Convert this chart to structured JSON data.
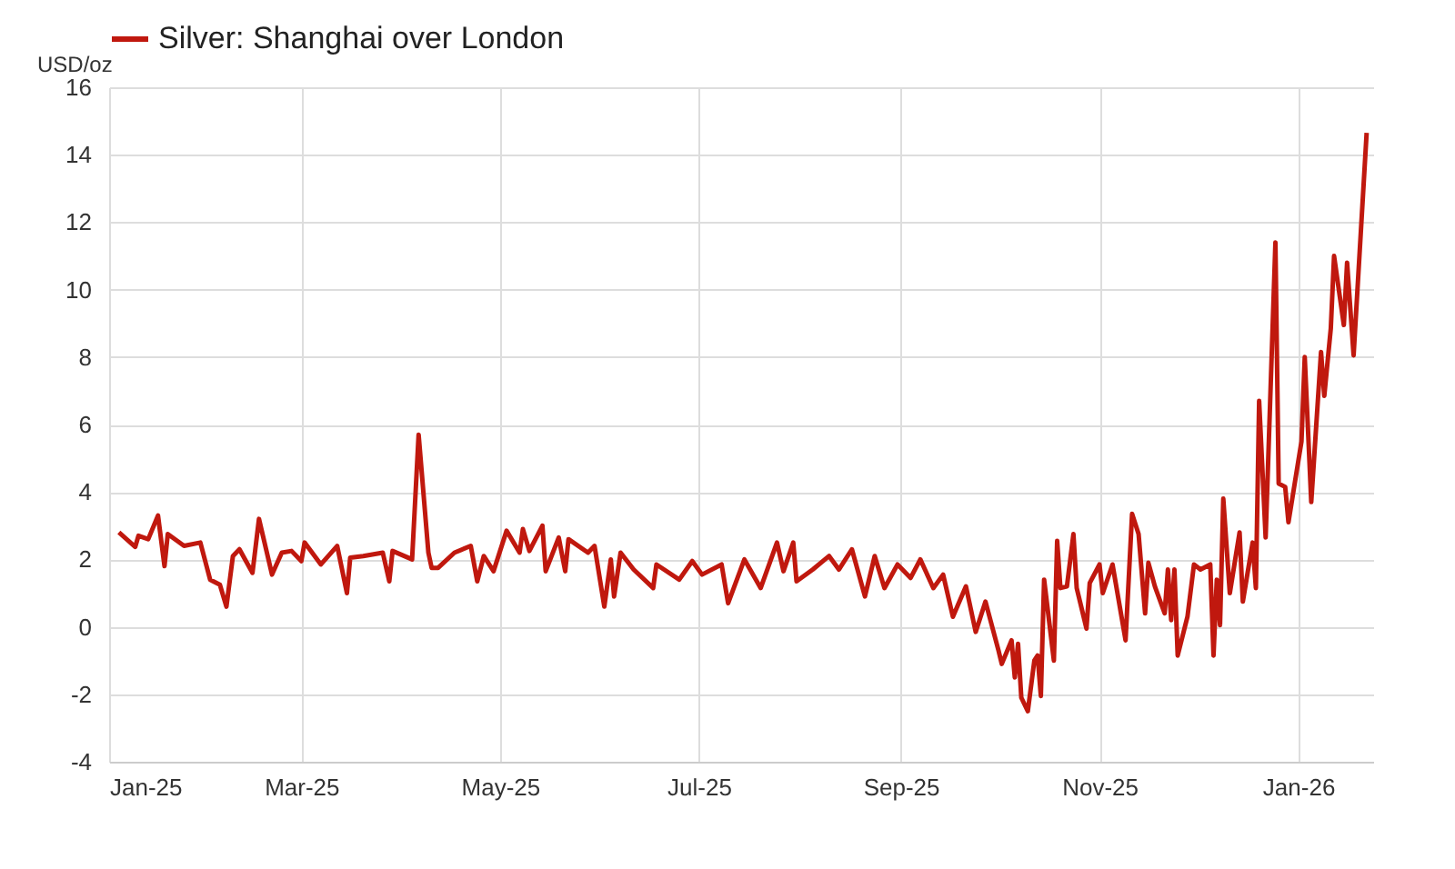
{
  "chart_data": {
    "type": "line",
    "ylabel": "USD/oz",
    "x": [
      "2025-01-04",
      "2025-01-09",
      "2025-01-10",
      "2025-01-13",
      "2025-01-16",
      "2025-01-18",
      "2025-01-19",
      "2025-01-24",
      "2025-01-29",
      "2025-02-01",
      "2025-02-04",
      "2025-02-06",
      "2025-02-08",
      "2025-02-10",
      "2025-02-14",
      "2025-02-16",
      "2025-02-20",
      "2025-02-23",
      "2025-02-26",
      "2025-03-01",
      "2025-03-02",
      "2025-03-07",
      "2025-03-12",
      "2025-03-15",
      "2025-03-16",
      "2025-03-20",
      "2025-03-26",
      "2025-03-28",
      "2025-03-29",
      "2025-04-04",
      "2025-04-06",
      "2025-04-09",
      "2025-04-10",
      "2025-04-12",
      "2025-04-17",
      "2025-04-22",
      "2025-04-24",
      "2025-04-26",
      "2025-04-29",
      "2025-05-03",
      "2025-05-07",
      "2025-05-08",
      "2025-05-10",
      "2025-05-14",
      "2025-05-15",
      "2025-05-19",
      "2025-05-21",
      "2025-05-22",
      "2025-05-28",
      "2025-05-30",
      "2025-06-02",
      "2025-06-04",
      "2025-06-05",
      "2025-06-07",
      "2025-06-11",
      "2025-06-17",
      "2025-06-18",
      "2025-06-25",
      "2025-06-29",
      "2025-07-02",
      "2025-07-08",
      "2025-07-10",
      "2025-07-15",
      "2025-07-20",
      "2025-07-25",
      "2025-07-27",
      "2025-07-30",
      "2025-07-31",
      "2025-08-05",
      "2025-08-10",
      "2025-08-13",
      "2025-08-17",
      "2025-08-21",
      "2025-08-24",
      "2025-08-27",
      "2025-08-31",
      "2025-09-04",
      "2025-09-07",
      "2025-09-11",
      "2025-09-14",
      "2025-09-17",
      "2025-09-21",
      "2025-09-24",
      "2025-09-27",
      "2025-10-01",
      "2025-10-02",
      "2025-10-05",
      "2025-10-06",
      "2025-10-07",
      "2025-10-08",
      "2025-10-10",
      "2025-10-12",
      "2025-10-13",
      "2025-10-14",
      "2025-10-15",
      "2025-10-18",
      "2025-10-19",
      "2025-10-20",
      "2025-10-22",
      "2025-10-24",
      "2025-10-25",
      "2025-10-28",
      "2025-10-29",
      "2025-11-01",
      "2025-11-02",
      "2025-11-05",
      "2025-11-09",
      "2025-11-11",
      "2025-11-13",
      "2025-11-15",
      "2025-11-16",
      "2025-11-18",
      "2025-11-21",
      "2025-11-22",
      "2025-11-23",
      "2025-11-24",
      "2025-11-25",
      "2025-11-28",
      "2025-11-30",
      "2025-12-02",
      "2025-12-05",
      "2025-12-06",
      "2025-12-07",
      "2025-12-08",
      "2025-12-09",
      "2025-12-11",
      "2025-12-14",
      "2025-12-15",
      "2025-12-18",
      "2025-12-19",
      "2025-12-20",
      "2025-12-22",
      "2025-12-25",
      "2025-12-26",
      "2025-12-28",
      "2025-12-29",
      "2026-01-02",
      "2026-01-03",
      "2026-01-05",
      "2026-01-08",
      "2026-01-09",
      "2026-01-11",
      "2026-01-12",
      "2026-01-15",
      "2026-01-16",
      "2026-01-18",
      "2026-01-22"
    ],
    "series": [
      {
        "name": "Silver: Shanghai over London",
        "color": "#c0180e",
        "values": [
          2.8,
          2.37,
          2.7,
          2.6,
          3.3,
          1.8,
          2.75,
          2.4,
          2.5,
          1.4,
          1.25,
          0.6,
          2.1,
          2.3,
          1.6,
          3.2,
          1.55,
          2.2,
          2.25,
          1.95,
          2.5,
          1.85,
          2.4,
          1.0,
          2.05,
          2.1,
          2.2,
          1.35,
          2.25,
          2.0,
          5.7,
          2.2,
          1.75,
          1.75,
          2.2,
          2.4,
          1.35,
          2.1,
          1.65,
          2.85,
          2.2,
          2.9,
          2.25,
          3.0,
          1.65,
          2.65,
          1.65,
          2.6,
          2.2,
          2.4,
          0.6,
          2.0,
          0.9,
          2.2,
          1.7,
          1.15,
          1.85,
          1.4,
          1.95,
          1.55,
          1.85,
          0.7,
          2.0,
          1.15,
          2.5,
          1.65,
          2.5,
          1.35,
          1.7,
          2.1,
          1.7,
          2.3,
          0.9,
          2.1,
          1.15,
          1.85,
          1.45,
          2.0,
          1.15,
          1.55,
          0.3,
          1.2,
          -0.15,
          0.75,
          -0.7,
          -1.1,
          -0.4,
          -1.5,
          -0.5,
          -2.1,
          -2.5,
          -1.0,
          -0.85,
          -2.05,
          1.4,
          -1.0,
          2.55,
          1.15,
          1.2,
          2.75,
          1.15,
          -0.05,
          1.3,
          1.85,
          1.0,
          1.85,
          -0.4,
          3.35,
          2.75,
          0.4,
          1.9,
          1.2,
          0.4,
          1.7,
          0.2,
          1.7,
          -0.85,
          0.3,
          1.85,
          1.7,
          1.85,
          -0.85,
          1.4,
          0.05,
          3.8,
          1.0,
          2.8,
          0.75,
          2.5,
          1.15,
          6.7,
          2.65,
          11.4,
          4.25,
          4.15,
          3.1,
          5.5,
          8.0,
          3.7,
          8.15,
          6.85,
          8.85,
          11.0,
          8.95,
          10.8,
          8.05,
          14.65
        ]
      }
    ],
    "xlim": [
      "2025-01-01",
      "2026-01-24"
    ],
    "xticks": [
      {
        "value": "2025-01-01",
        "label": "Jan-25"
      },
      {
        "value": "2025-03-01",
        "label": "Mar-25"
      },
      {
        "value": "2025-05-01",
        "label": "May-25"
      },
      {
        "value": "2025-07-01",
        "label": "Jul-25"
      },
      {
        "value": "2025-09-01",
        "label": "Sep-25"
      },
      {
        "value": "2025-11-01",
        "label": "Nov-25"
      },
      {
        "value": "2026-01-01",
        "label": "Jan-26"
      }
    ],
    "ylim": [
      -4,
      16
    ],
    "yticks": [
      -4,
      -2,
      0,
      2,
      4,
      6,
      8,
      10,
      12,
      14,
      16
    ],
    "grid": true,
    "legend": "top",
    "marker": "none",
    "line_style": "solid"
  }
}
